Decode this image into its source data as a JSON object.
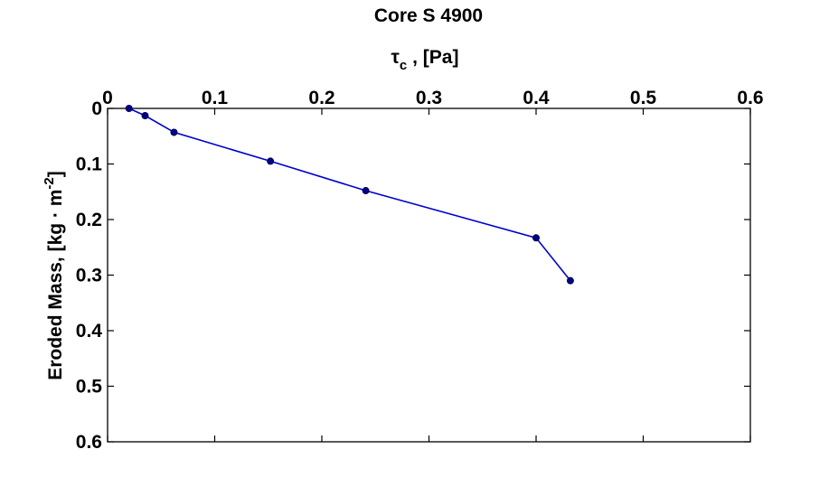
{
  "chart_data": {
    "type": "line",
    "title": "Core S 4900",
    "xlabel": {
      "symbol": "τ",
      "subscript": "c",
      "rest": " , [Pa]"
    },
    "ylabel": {
      "main": "Eroded Mass, [kg · m",
      "superscript": "-2",
      "close": "]"
    },
    "x_axis_position": "top",
    "y_axis_reversed": true,
    "xlim": [
      0,
      0.6
    ],
    "ylim": [
      0,
      0.6
    ],
    "xticks": [
      0,
      0.1,
      0.2,
      0.3,
      0.4,
      0.5,
      0.6
    ],
    "xtick_labels": [
      "0",
      "0.1",
      "0.2",
      "0.3",
      "0.4",
      "0.5",
      "0.6"
    ],
    "yticks": [
      0,
      0.1,
      0.2,
      0.3,
      0.4,
      0.5,
      0.6
    ],
    "ytick_labels": [
      "0",
      "0.1",
      "0.2",
      "0.3",
      "0.4",
      "0.5",
      "0.6"
    ],
    "grid": false,
    "legend": "none",
    "series": [
      {
        "color": "#0000cc",
        "marker_color": "#00008b",
        "points": [
          {
            "x": 0.02,
            "y": 0.0
          },
          {
            "x": 0.035,
            "y": 0.013
          },
          {
            "x": 0.062,
            "y": 0.043
          },
          {
            "x": 0.152,
            "y": 0.095
          },
          {
            "x": 0.241,
            "y": 0.148
          },
          {
            "x": 0.4,
            "y": 0.233
          },
          {
            "x": 0.432,
            "y": 0.31
          }
        ]
      }
    ]
  }
}
